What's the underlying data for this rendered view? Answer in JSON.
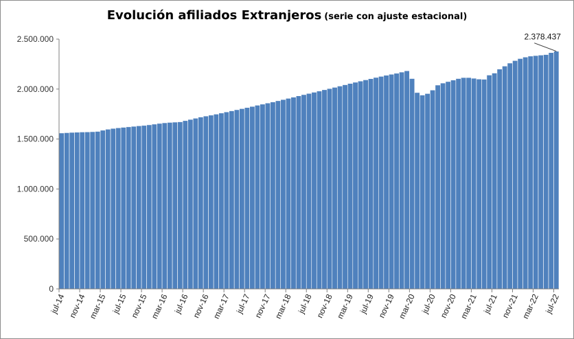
{
  "chart_data": {
    "type": "bar",
    "title": "Evolución afiliados Extranjeros",
    "subtitle": "(serie con ajuste estacional)",
    "xlabel": "",
    "ylabel": "",
    "ylim": [
      0,
      2500000
    ],
    "y_ticks": [
      0,
      500000,
      1000000,
      1500000,
      2000000,
      2500000
    ],
    "y_tick_labels": [
      "0",
      "500.000",
      "1.000.000",
      "1.500.000",
      "2.000.000",
      "2.500.000"
    ],
    "x_tick_labels": [
      "jul-14",
      "nov-14",
      "mar-15",
      "jul-15",
      "nov-15",
      "mar-16",
      "jul-16",
      "nov-16",
      "mar-17",
      "jul-17",
      "nov-17",
      "mar-18",
      "jul-18",
      "nov-18",
      "mar-19",
      "jul-19",
      "nov-19",
      "mar-20",
      "jul-20",
      "nov-20",
      "mar-21",
      "jul-21",
      "nov-21",
      "mar-22",
      "jul-22"
    ],
    "categories": [
      "jul-14",
      "ago-14",
      "sep-14",
      "oct-14",
      "nov-14",
      "dic-14",
      "ene-15",
      "feb-15",
      "mar-15",
      "abr-15",
      "may-15",
      "jun-15",
      "jul-15",
      "ago-15",
      "sep-15",
      "oct-15",
      "nov-15",
      "dic-15",
      "ene-16",
      "feb-16",
      "mar-16",
      "abr-16",
      "may-16",
      "jun-16",
      "jul-16",
      "ago-16",
      "sep-16",
      "oct-16",
      "nov-16",
      "dic-16",
      "ene-17",
      "feb-17",
      "mar-17",
      "abr-17",
      "may-17",
      "jun-17",
      "jul-17",
      "ago-17",
      "sep-17",
      "oct-17",
      "nov-17",
      "dic-17",
      "ene-18",
      "feb-18",
      "mar-18",
      "abr-18",
      "may-18",
      "jun-18",
      "jul-18",
      "ago-18",
      "sep-18",
      "oct-18",
      "nov-18",
      "dic-18",
      "ene-19",
      "feb-19",
      "mar-19",
      "abr-19",
      "may-19",
      "jun-19",
      "jul-19",
      "ago-19",
      "sep-19",
      "oct-19",
      "nov-19",
      "dic-19",
      "ene-20",
      "feb-20",
      "mar-20",
      "abr-20",
      "may-20",
      "jun-20",
      "jul-20",
      "ago-20",
      "sep-20",
      "oct-20",
      "nov-20",
      "dic-20",
      "ene-21",
      "feb-21",
      "mar-21",
      "abr-21",
      "may-21",
      "jun-21",
      "jul-21",
      "ago-21",
      "sep-21",
      "oct-21",
      "nov-21",
      "dic-21",
      "ene-22",
      "feb-22",
      "mar-22",
      "abr-22",
      "may-22",
      "jun-22",
      "jul-22"
    ],
    "values": [
      1560000,
      1563000,
      1566000,
      1568000,
      1570000,
      1571000,
      1573000,
      1576000,
      1588000,
      1598000,
      1606000,
      1612000,
      1617000,
      1622000,
      1627000,
      1632000,
      1636000,
      1642000,
      1649000,
      1656000,
      1662000,
      1666000,
      1669000,
      1672000,
      1684000,
      1696000,
      1708000,
      1720000,
      1730000,
      1739000,
      1749000,
      1760000,
      1771000,
      1782000,
      1793000,
      1804000,
      1815000,
      1826000,
      1838000,
      1849000,
      1860000,
      1871000,
      1883000,
      1895000,
      1907000,
      1919000,
      1932000,
      1944000,
      1956000,
      1968000,
      1980000,
      1993000,
      2005000,
      2017000,
      2030000,
      2043000,
      2056000,
      2068000,
      2080000,
      2092000,
      2104000,
      2116000,
      2127000,
      2138000,
      2148000,
      2158000,
      2170000,
      2183000,
      2105000,
      1965000,
      1940000,
      1955000,
      1990000,
      2040000,
      2060000,
      2075000,
      2090000,
      2105000,
      2115000,
      2115000,
      2108000,
      2100000,
      2098000,
      2140000,
      2160000,
      2200000,
      2230000,
      2260000,
      2285000,
      2305000,
      2320000,
      2330000,
      2335000,
      2340000,
      2345000,
      2365000,
      2378437
    ],
    "annotation": {
      "label": "2.378.437",
      "index": 96
    },
    "colors": {
      "bar": "#4F81BD",
      "bar_edge": "#ffffff",
      "axis": "#7f7f7f"
    },
    "grid": false,
    "legend": "none"
  }
}
